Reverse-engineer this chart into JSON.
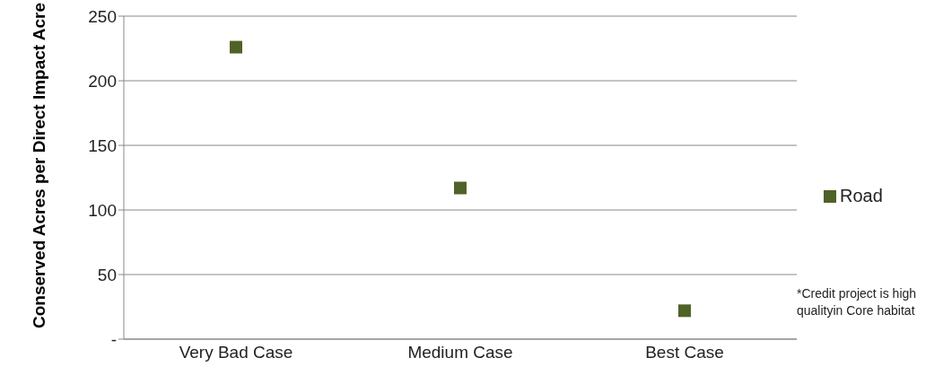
{
  "chart_data": {
    "type": "scatter",
    "categories": [
      "Very Bad Case",
      "Medium Case",
      "Best Case"
    ],
    "series": [
      {
        "name": "Road",
        "color": "#4f6228",
        "values": [
          226,
          117,
          22
        ]
      }
    ],
    "ylabel": "Conserved Acres per Direct Impact Acre",
    "ylim": [
      0,
      250
    ],
    "yticks": [
      {
        "value": 0,
        "label": "-"
      },
      50,
      100,
      150,
      200,
      250
    ],
    "grid": "y",
    "legend": "right",
    "marker": "square",
    "annotations": [
      "*Credit project is high qualityin Core habitat"
    ]
  }
}
